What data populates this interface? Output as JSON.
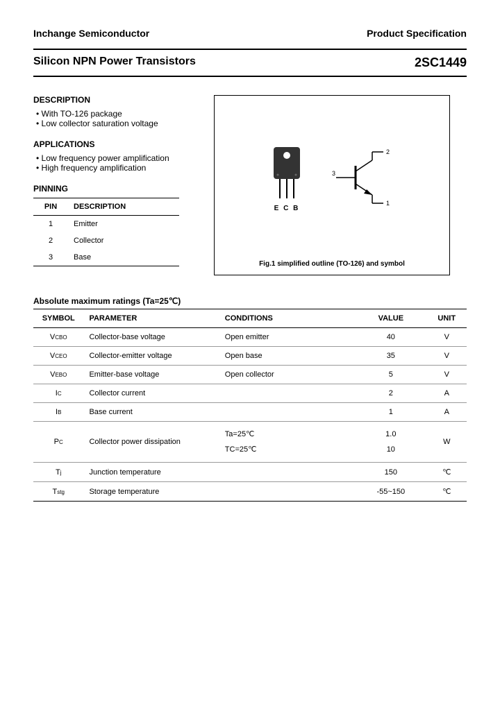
{
  "header": {
    "company": "Inchange Semiconductor",
    "doc_type": "Product Specification"
  },
  "title": {
    "main": "Silicon NPN Power Transistors",
    "part": "2SC1449"
  },
  "description": {
    "heading": "DESCRIPTION",
    "items": [
      "With TO-126 package",
      "Low collector saturation voltage"
    ]
  },
  "applications": {
    "heading": "APPLICATIONS",
    "items": [
      "Low frequency power amplification",
      "High frequency amplification"
    ]
  },
  "pinning": {
    "heading": "PINNING",
    "col_pin": "PIN",
    "col_desc": "DESCRIPTION",
    "rows": [
      {
        "pin": "1",
        "desc": "Emitter"
      },
      {
        "pin": "2",
        "desc": "Collector"
      },
      {
        "pin": "3",
        "desc": "Base"
      }
    ]
  },
  "figure": {
    "pin_labels": "E C B",
    "schematic_pins": {
      "p1": "1",
      "p2": "2",
      "p3": "3"
    },
    "caption": "Fig.1 simplified outline (TO-126) and symbol"
  },
  "ratings": {
    "heading": "Absolute maximum ratings (Ta=25℃)",
    "cols": {
      "symbol": "SYMBOL",
      "parameter": "PARAMETER",
      "conditions": "CONDITIONS",
      "value": "VALUE",
      "unit": "UNIT"
    },
    "rows": [
      {
        "sym_main": "V",
        "sym_sub": "CBO",
        "param": "Collector-base voltage",
        "cond": "Open emitter",
        "val": "40",
        "unit": "V"
      },
      {
        "sym_main": "V",
        "sym_sub": "CEO",
        "param": "Collector-emitter voltage",
        "cond": "Open base",
        "val": "35",
        "unit": "V"
      },
      {
        "sym_main": "V",
        "sym_sub": "EBO",
        "param": "Emitter-base voltage",
        "cond": "Open collector",
        "val": "5",
        "unit": "V"
      },
      {
        "sym_main": "I",
        "sym_sub": "C",
        "param": "Collector current",
        "cond": "",
        "val": "2",
        "unit": "A"
      },
      {
        "sym_main": "I",
        "sym_sub": "B",
        "param": "Base current",
        "cond": "",
        "val": "1",
        "unit": "A"
      },
      {
        "sym_main": "P",
        "sym_sub": "C",
        "param": "Collector power dissipation",
        "cond_a": "Ta=25℃",
        "cond_b": "TC=25℃",
        "val_a": "1.0",
        "val_b": "10",
        "unit": "W",
        "stacked": true
      },
      {
        "sym_main": "T",
        "sym_sub": "j",
        "param": "Junction temperature",
        "cond": "",
        "val": "150",
        "unit": "℃"
      },
      {
        "sym_main": "T",
        "sym_sub": "stg",
        "param": "Storage temperature",
        "cond": "",
        "val": "-55~150",
        "unit": "℃"
      }
    ]
  },
  "colors": {
    "bg": "#ffffff",
    "text": "#000000",
    "rule": "#000000",
    "rule_light": "#999999",
    "pkg_fill": "#333333"
  }
}
